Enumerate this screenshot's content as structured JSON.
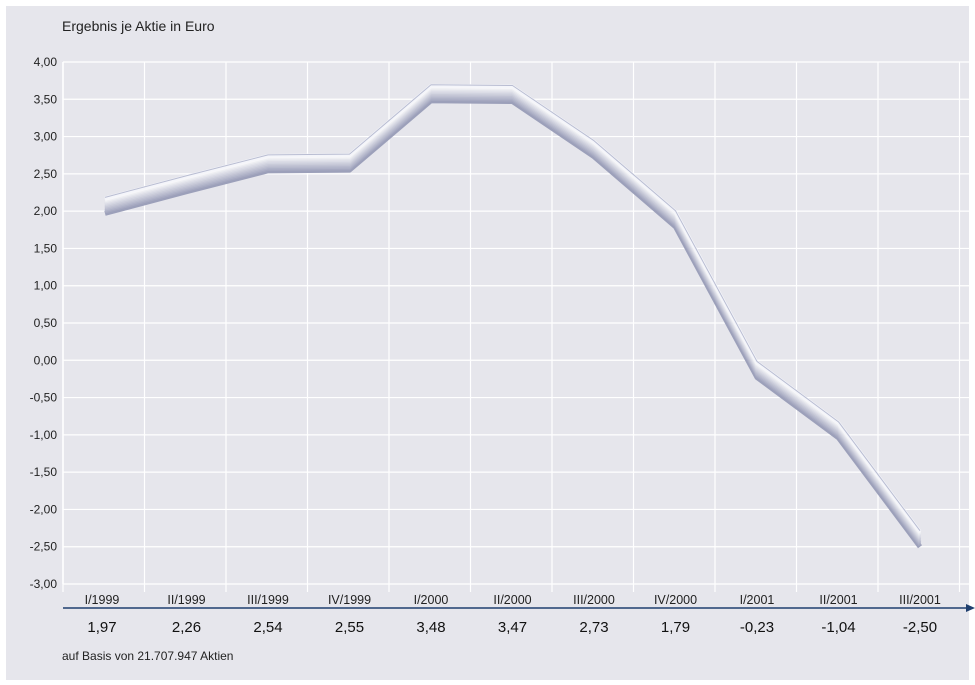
{
  "chart_data": {
    "type": "line",
    "title": "Ergebnis je Aktie in Euro",
    "footnote": "auf Basis von 21.707.947 Aktien",
    "categories": [
      "I/1999",
      "II/1999",
      "III/1999",
      "IV/1999",
      "I/2000",
      "II/2000",
      "III/2000",
      "IV/2000",
      "I/2001",
      "II/2001",
      "III/2001"
    ],
    "value_labels": [
      "1,97",
      "2,26",
      "2,54",
      "2,55",
      "3,48",
      "3,47",
      "2,73",
      "1,79",
      "-0,23",
      "-1,04",
      "-2,50"
    ],
    "series": [
      {
        "values": [
          1.97,
          2.26,
          2.54,
          2.55,
          3.48,
          3.47,
          2.73,
          1.79,
          -0.23,
          -1.04,
          -2.5
        ]
      }
    ],
    "yticks": [
      "4,00",
      "3,50",
      "3,00",
      "2,50",
      "2,00",
      "1,50",
      "1,00",
      "0,50",
      "0,00",
      "-0,50",
      "-1,00",
      "-1,50",
      "-2,00",
      "-2,50",
      "-3,00"
    ],
    "ylim": [
      -3.0,
      4.0
    ],
    "grid": true,
    "colors": {
      "background": "#e6e6ec",
      "line_light": "#ffffff",
      "line_dark": "#8a8fae",
      "axis": "#1f3f6e"
    }
  }
}
